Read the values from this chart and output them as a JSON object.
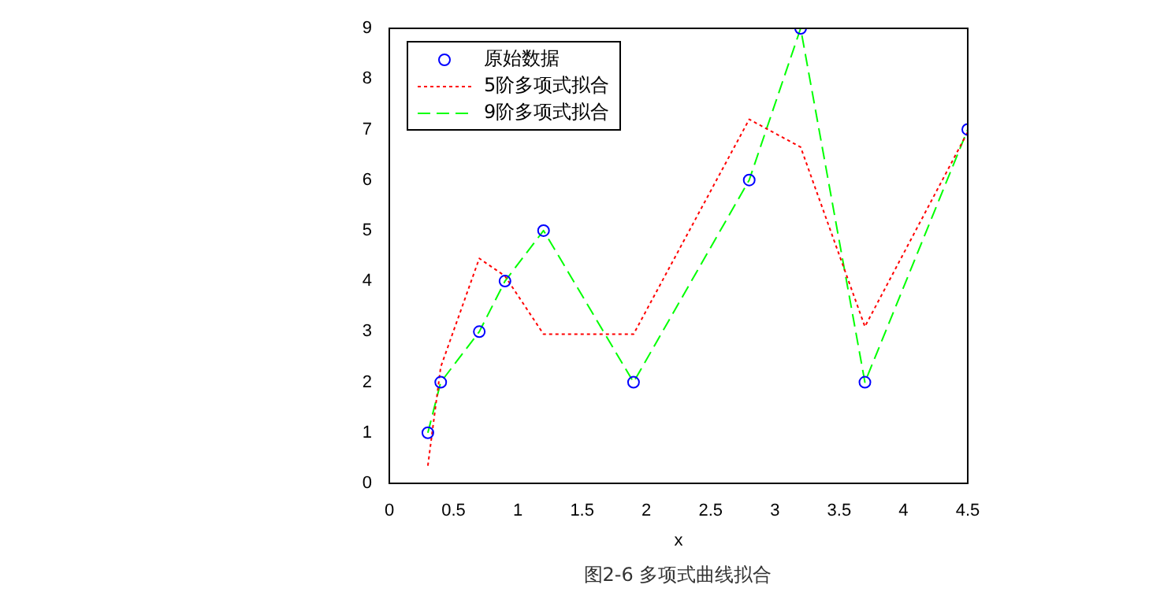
{
  "chart_data": {
    "type": "line",
    "xlabel": "x",
    "x": [
      0.3,
      0.4,
      0.7,
      0.9,
      1.2,
      1.9,
      2.8,
      3.2,
      3.7,
      4.5
    ],
    "series": [
      {
        "name": "原始数据",
        "type": "scatter",
        "color": "#0000ff",
        "marker": "circle",
        "values": [
          1,
          2,
          3,
          4,
          5,
          2,
          6,
          9,
          2,
          7
        ]
      },
      {
        "name": "5阶多项式拟合",
        "type": "line",
        "color": "#ff0000",
        "marker": "none",
        "line_style": "dotted",
        "values": [
          0.35,
          2.3,
          4.45,
          4.1,
          2.95,
          2.95,
          7.2,
          6.65,
          3.1,
          6.95
        ]
      },
      {
        "name": "9阶多项式拟合",
        "type": "line",
        "color": "#00ff00",
        "marker": "none",
        "line_style": "dashed",
        "values": [
          1,
          2,
          3,
          4,
          5,
          2,
          6,
          9,
          2,
          7
        ]
      }
    ],
    "xlim": [
      0,
      4.5
    ],
    "xticks": [
      0,
      0.5,
      1,
      1.5,
      2,
      2.5,
      3,
      3.5,
      4,
      4.5
    ],
    "ylim": [
      0,
      9
    ],
    "yticks": [
      0,
      1,
      2,
      3,
      4,
      5,
      6,
      7,
      8,
      9
    ],
    "grid": false,
    "legend": "top left",
    "annotations": [
      "图2-6 多项式曲线拟合"
    ]
  }
}
